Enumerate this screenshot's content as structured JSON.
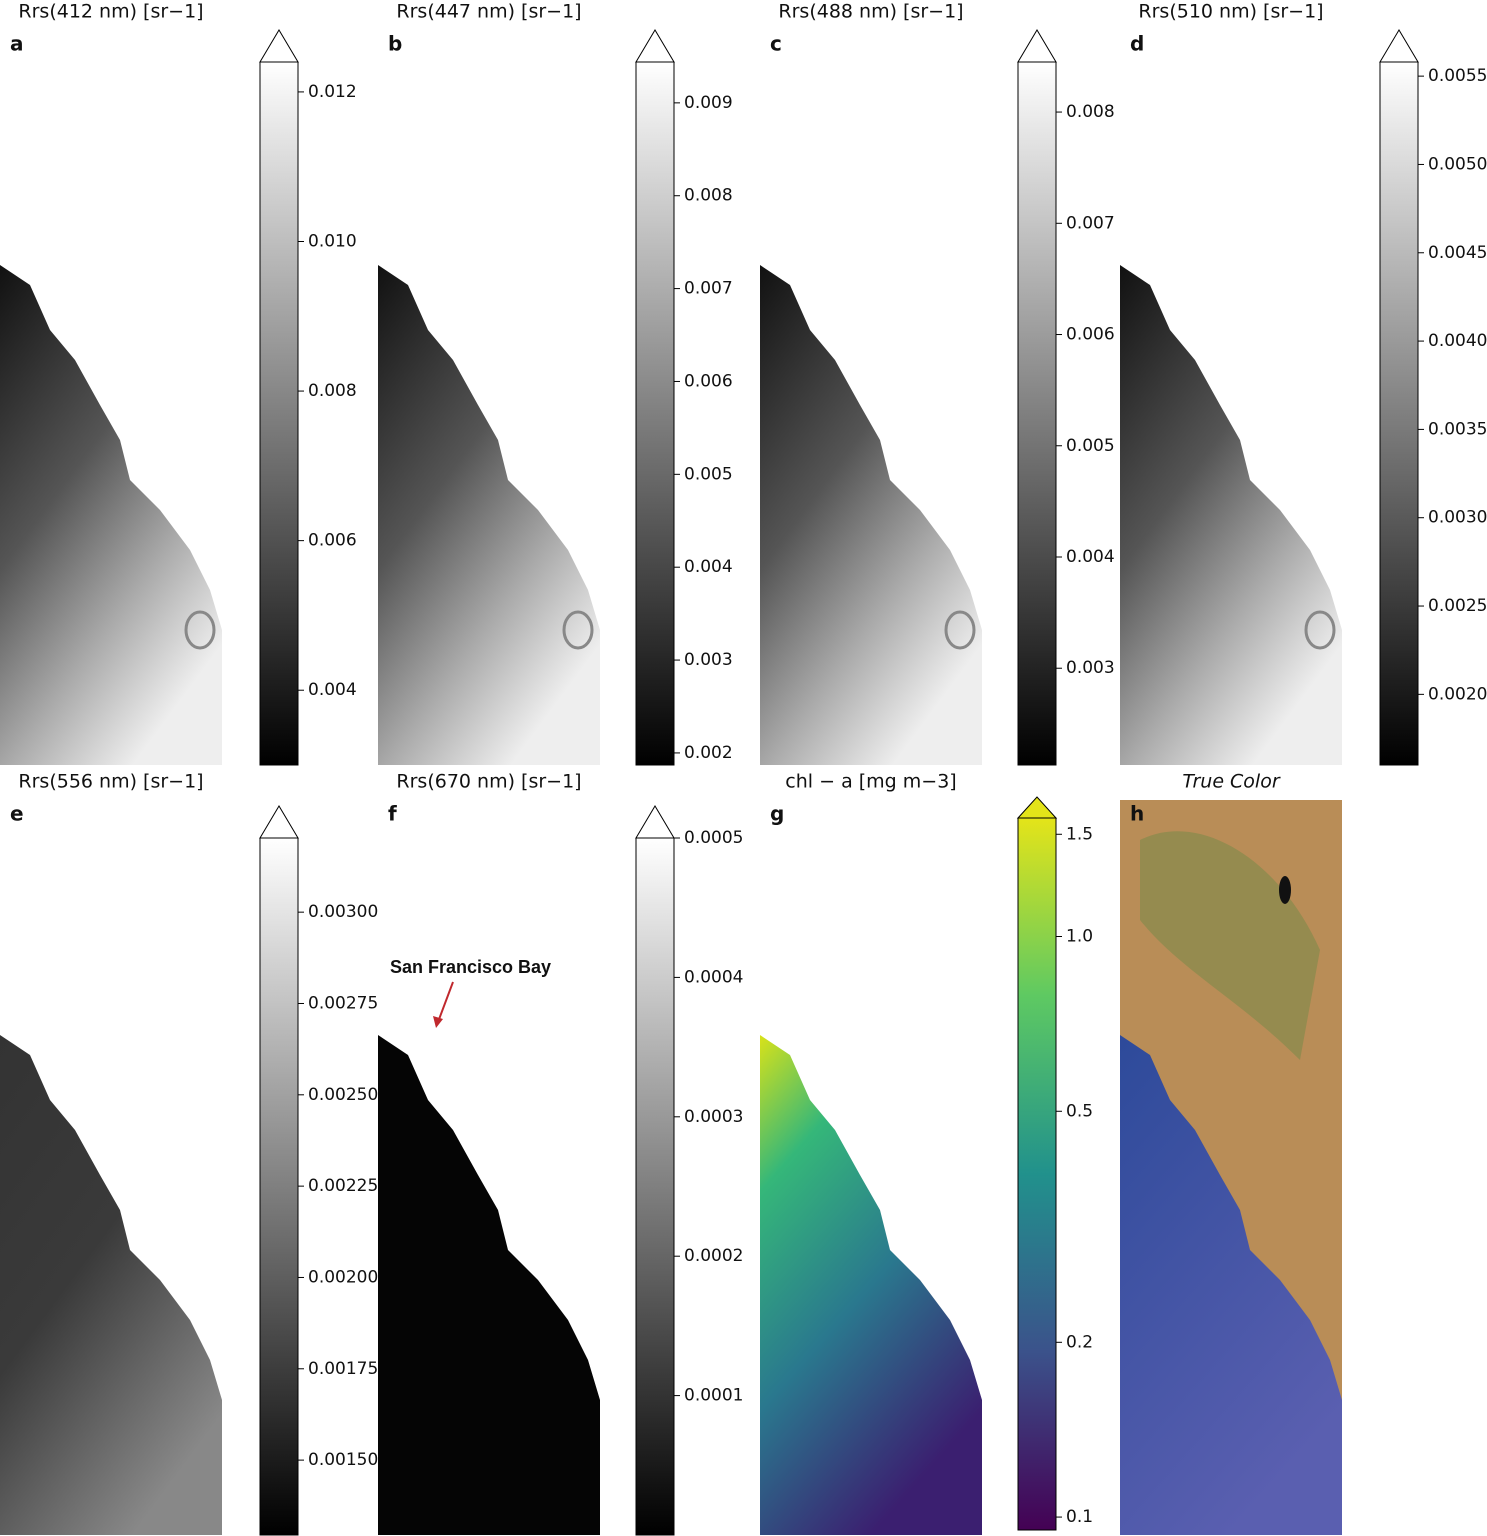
{
  "chart_data": [
    {
      "type": "image",
      "title": "Rrs(412 nm) [sr−1]",
      "panel_label": "a",
      "cmap": "gray",
      "extend": "max",
      "clim": [
        0.003,
        0.0124
      ],
      "ticks": [
        {
          "value": 0.004,
          "label": "0.004"
        },
        0.006,
        0.008,
        {
          "value": 0.01,
          "label": "0.010"
        },
        0.012
      ]
    },
    {
      "type": "image",
      "title": "Rrs(447 nm) [sr−1]",
      "panel_label": "b",
      "cmap": "gray",
      "extend": "max",
      "clim": [
        0.00187,
        0.00944
      ],
      "ticks": [
        0.002,
        0.003,
        0.004,
        0.005,
        0.006,
        0.007,
        0.008,
        0.009
      ]
    },
    {
      "type": "image",
      "title": "Rrs(488 nm) [sr−1]",
      "panel_label": "c",
      "cmap": "gray",
      "extend": "max",
      "clim": [
        0.00213,
        0.00845
      ],
      "ticks": [
        0.003,
        0.004,
        0.005,
        0.006,
        0.007,
        0.008
      ]
    },
    {
      "type": "image",
      "title": "Rrs(510 nm) [sr−1]",
      "panel_label": "d",
      "cmap": "gray",
      "extend": "max",
      "clim": [
        0.0016,
        0.00558
      ],
      "ticks": [
        {
          "value": 0.002,
          "label": "0.0020"
        },
        0.0025,
        {
          "value": 0.003,
          "label": "0.0030"
        },
        0.0035,
        {
          "value": 0.004,
          "label": "0.0040"
        },
        0.0045,
        {
          "value": 0.005,
          "label": "0.0050"
        },
        0.0055
      ]
    },
    {
      "type": "image",
      "title": "Rrs(556 nm) [sr−1]",
      "panel_label": "e",
      "cmap": "gray",
      "extend": "max",
      "clim": [
        0.001295,
        0.003203
      ],
      "ticks": [
        {
          "value": 0.0015,
          "label": "0.00150"
        },
        0.00175,
        {
          "value": 0.002,
          "label": "0.00200"
        },
        0.00225,
        {
          "value": 0.0025,
          "label": "0.00250"
        },
        0.00275,
        {
          "value": 0.003,
          "label": "0.00300"
        }
      ]
    },
    {
      "type": "image",
      "title": "Rrs(670 nm) [sr−1]",
      "panel_label": "f",
      "cmap": "gray",
      "extend": "max",
      "clim": [
        0,
        0.0005
      ],
      "ticks": [
        0.0001,
        0.0002,
        0.0003,
        0.0004,
        0.0005
      ],
      "annotation": "San Francisco Bay"
    },
    {
      "type": "image",
      "title": "chl − a [mg m−3]",
      "panel_label": "g",
      "cmap": "viridis",
      "extend": "max",
      "scale": "log",
      "clim": [
        0.095,
        1.6
      ],
      "ticks": [
        0.1,
        0.2,
        0.5,
        {
          "value": 1,
          "label": "1.0"
        },
        1.5
      ]
    },
    {
      "type": "image",
      "title": "True Color",
      "panel_label": "h",
      "cmap": "rgb"
    }
  ]
}
